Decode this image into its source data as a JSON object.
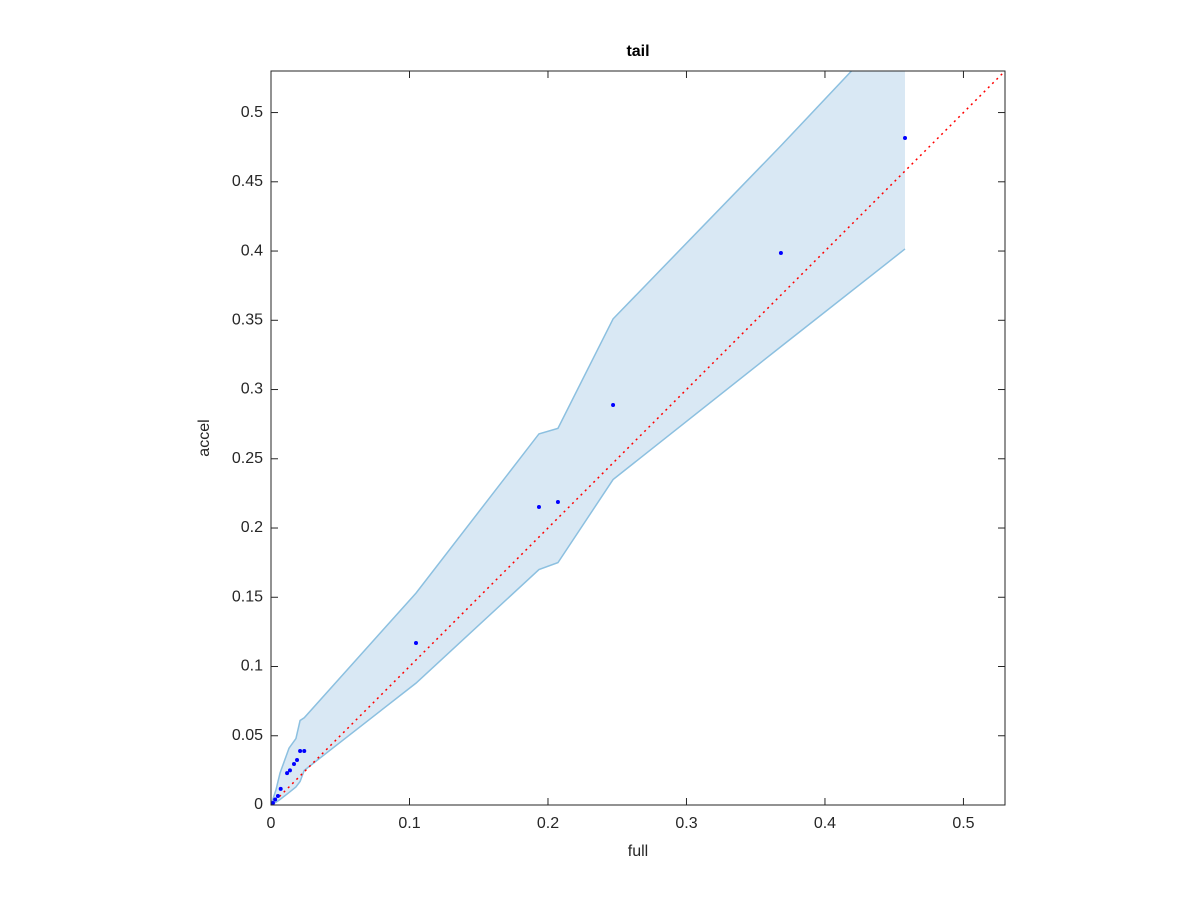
{
  "chart_data": {
    "type": "scatter",
    "title": "tail",
    "xlabel": "full",
    "ylabel": "accel",
    "x": [
      0,
      0.0014,
      0.003,
      0.005,
      0.007,
      0.0116,
      0.0137,
      0.0166,
      0.0188,
      0.021,
      0.024,
      0.1047,
      0.1935,
      0.2072,
      0.247,
      0.3682,
      0.4578
    ],
    "values": [
      0,
      0.0014,
      0.004,
      0.0065,
      0.0116,
      0.023,
      0.025,
      0.0296,
      0.0325,
      0.039,
      0.039,
      0.117,
      0.2152,
      0.2188,
      0.2888,
      0.3986,
      0.4816
    ],
    "color": "#0000ff",
    "band": {
      "x": [
        0,
        0.0036,
        0.0065,
        0.013,
        0.018,
        0.021,
        0.024,
        0.1047,
        0.1935,
        0.2072,
        0.247,
        0.3682,
        0.4578
      ],
      "upper": [
        0,
        0.011,
        0.023,
        0.041,
        0.048,
        0.061,
        0.063,
        0.153,
        0.268,
        0.272,
        0.351,
        0.476,
        0.571
      ],
      "lower": [
        0,
        0.002,
        0.004,
        0.009,
        0.013,
        0.017,
        0.025,
        0.088,
        0.17,
        0.175,
        0.235,
        0.331,
        0.4015
      ],
      "fill": "#d9e8f4",
      "edge": "#8cc0e0"
    },
    "reference": {
      "x": [
        0,
        0.53
      ],
      "values": [
        0,
        0.53
      ],
      "color": "#ff0000"
    },
    "xlim": [
      0,
      0.53
    ],
    "ylim": [
      0,
      0.53
    ],
    "xticks": [
      0,
      0.1,
      0.2,
      0.3,
      0.4,
      0.5
    ],
    "yticks": [
      0,
      0.05,
      0.1,
      0.15,
      0.2,
      0.25,
      0.3,
      0.35,
      0.4,
      0.45,
      0.5
    ]
  }
}
